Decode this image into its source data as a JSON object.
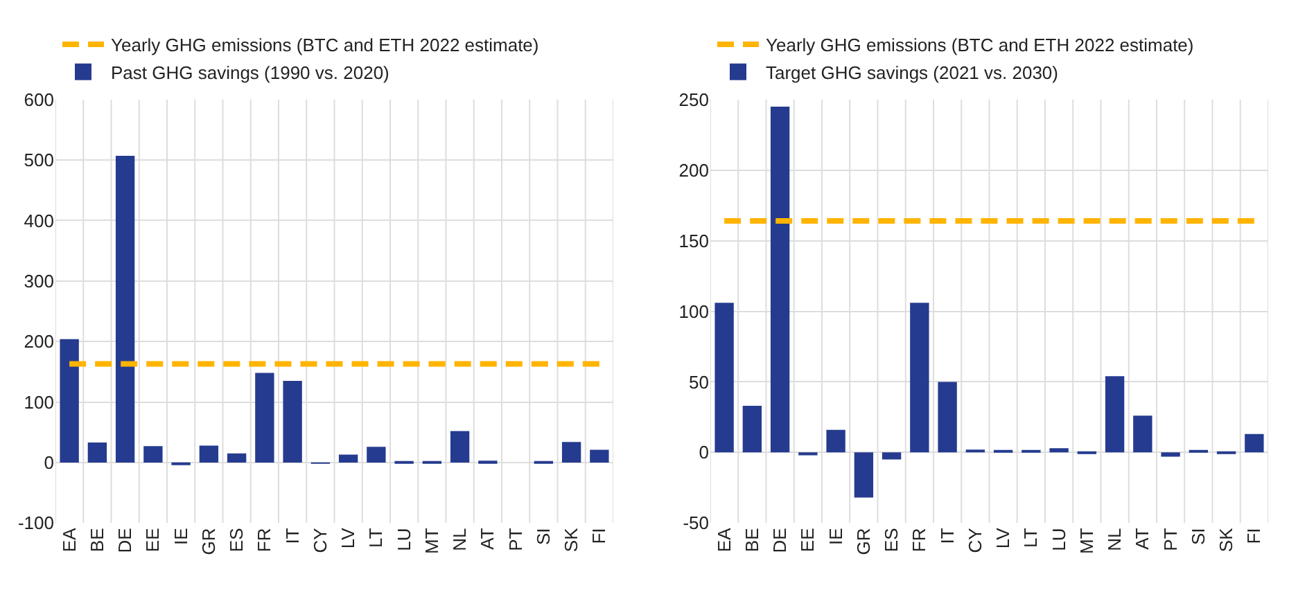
{
  "chart_data": [
    {
      "type": "bar",
      "categories": [
        "EA",
        "BE",
        "DE",
        "EE",
        "IE",
        "GR",
        "ES",
        "FR",
        "IT",
        "CY",
        "LV",
        "LT",
        "LU",
        "MT",
        "NL",
        "AT",
        "PT",
        "SI",
        "SK",
        "FI"
      ],
      "ylim": [
        -100,
        600
      ],
      "yticks": [
        -100,
        0,
        100,
        200,
        300,
        400,
        500,
        600
      ],
      "grid": true,
      "legend": "top left",
      "series": [
        {
          "name": "Yearly GHG emissions (BTC and ETH 2022 estimate)",
          "type": "line",
          "color": "#ffb400",
          "line_style": "dashed",
          "marker": "none",
          "values": [
            163,
            163,
            163,
            163,
            163,
            163,
            163,
            163,
            163,
            163,
            163,
            163,
            163,
            163,
            163,
            163,
            163,
            163,
            163,
            163
          ]
        },
        {
          "name": "Past GHG savings (1990 vs. 2020)",
          "color": "#253b8f",
          "values": [
            204,
            33,
            507,
            27,
            -3,
            28,
            15,
            148,
            135,
            -2,
            13,
            26,
            1,
            1,
            52,
            3,
            0,
            2,
            34,
            21
          ]
        }
      ]
    },
    {
      "type": "bar",
      "categories": [
        "EA",
        "BE",
        "DE",
        "EE",
        "IE",
        "GR",
        "ES",
        "FR",
        "IT",
        "CY",
        "LV",
        "LT",
        "LU",
        "MT",
        "NL",
        "AT",
        "PT",
        "SI",
        "SK",
        "FI"
      ],
      "ylim": [
        -50,
        250
      ],
      "yticks": [
        -50,
        0,
        50,
        100,
        150,
        200,
        250
      ],
      "grid": true,
      "legend": "top left",
      "series": [
        {
          "name": "Yearly GHG emissions (BTC and ETH 2022 estimate)",
          "type": "line",
          "color": "#ffb400",
          "line_style": "dashed",
          "marker": "none",
          "values": [
            164,
            164,
            164,
            164,
            164,
            164,
            164,
            164,
            164,
            164,
            164,
            164,
            164,
            164,
            164,
            164,
            164,
            164,
            164,
            164
          ]
        },
        {
          "name": "Target GHG savings (2021 vs. 2030)",
          "color": "#253b8f",
          "values": [
            106,
            33,
            245,
            -2,
            16,
            -32,
            -5,
            106,
            50,
            2,
            1,
            1,
            3,
            -1,
            54,
            26,
            -3,
            1,
            -1,
            13
          ]
        }
      ]
    }
  ]
}
